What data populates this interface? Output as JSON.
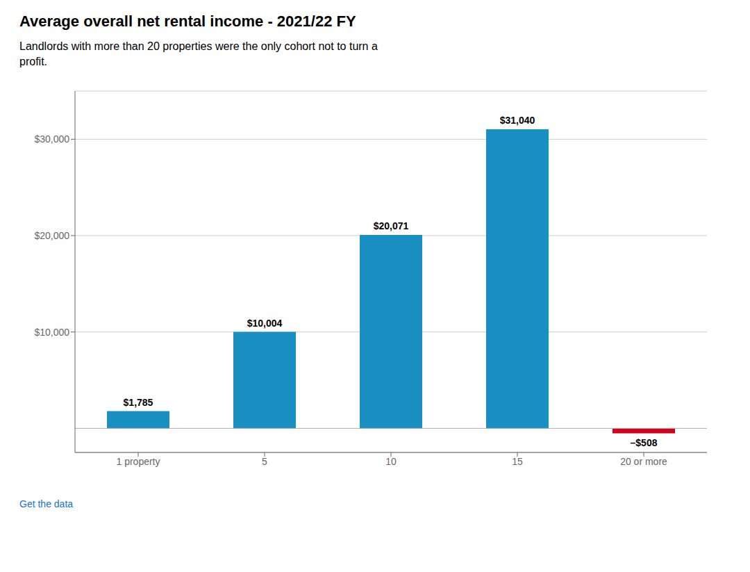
{
  "chart_data": {
    "type": "bar",
    "title": "Average overall net rental income - 2021/22 FY",
    "subtitle": "Landlords with more than 20 properties were the only cohort not to turn a\nprofit.",
    "categories": [
      "1 property",
      "5",
      "10",
      "15",
      "20 or more"
    ],
    "values": [
      1785,
      10004,
      20071,
      31040,
      -508
    ],
    "value_labels": [
      "$1,785",
      "$10,004",
      "$20,071",
      "$31,040",
      "–$508"
    ],
    "colors": [
      "#1a8fc1",
      "#1a8fc1",
      "#1a8fc1",
      "#1a8fc1",
      "#d0021b"
    ],
    "ylim": [
      -2500,
      35000
    ],
    "yticks": [
      {
        "value": 10000,
        "label": "$10,000"
      },
      {
        "value": 20000,
        "label": "$20,000"
      },
      {
        "value": 30000,
        "label": "$30,000"
      }
    ],
    "grid": true,
    "data_labels": true,
    "annotations": [
      "Get the data"
    ]
  }
}
